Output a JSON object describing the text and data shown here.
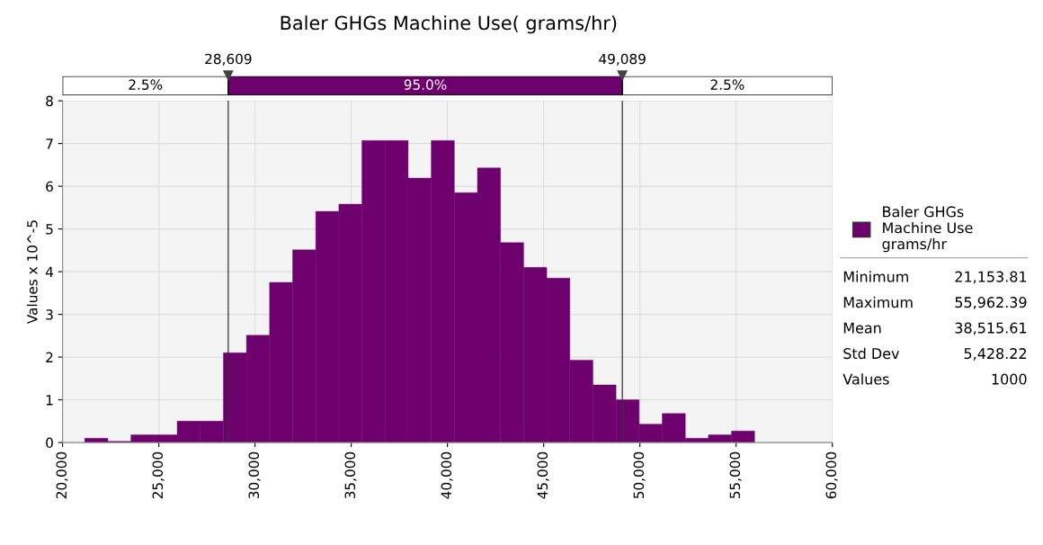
{
  "chart_data": {
    "type": "histogram",
    "title": "Baler GHGs Machine Use( grams/hr)",
    "ylabel": "Values x 10^-5",
    "bins": [
      21154,
      22354,
      23555,
      24755,
      25955,
      27155,
      28356,
      29556,
      30756,
      31957,
      33157,
      34357,
      35558,
      36758,
      37958,
      39158,
      40359,
      41559,
      42759,
      43960,
      45160,
      46360,
      47560,
      48761,
      49961,
      51161,
      52362,
      53562,
      54762,
      55962
    ],
    "series": [
      {
        "name": "Baler GHGs\nMachine Use\ngrams/hr",
        "color": "#6e006e",
        "values": [
          0.1,
          0.03,
          0.18,
          0.18,
          0.5,
          0.5,
          2.1,
          2.51,
          3.75,
          4.51,
          5.41,
          5.58,
          7.07,
          7.07,
          6.19,
          7.07,
          5.85,
          6.43,
          4.68,
          4.1,
          3.85,
          1.93,
          1.35,
          1.0,
          0.43,
          0.68,
          0.1,
          0.18,
          0.27
        ]
      }
    ],
    "xlim": [
      20000,
      60000
    ],
    "xticks": [
      {
        "value": 20000,
        "label": "20,000"
      },
      {
        "value": 25000,
        "label": "25,000"
      },
      {
        "value": 30000,
        "label": "30,000"
      },
      {
        "value": 35000,
        "label": "35,000"
      },
      {
        "value": 40000,
        "label": "40,000"
      },
      {
        "value": 45000,
        "label": "45,000"
      },
      {
        "value": 50000,
        "label": "50,000"
      },
      {
        "value": 55000,
        "label": "55,000"
      },
      {
        "value": 60000,
        "label": "60,000"
      }
    ],
    "ylim": [
      0,
      8
    ],
    "yticks": [
      0,
      1,
      2,
      3,
      4,
      5,
      6,
      7,
      8
    ],
    "grid": true,
    "legend": "right",
    "ref_lines": [
      {
        "axis": "x",
        "value": 28609,
        "label": "28,609"
      },
      {
        "axis": "x",
        "value": 49089,
        "label": "49,089"
      }
    ],
    "annotations": [
      "2.5%",
      "95.0%",
      "2.5%",
      "Minimum",
      "21,153.81",
      "Maximum",
      "55,962.39",
      "Mean",
      "38,515.61",
      "Std Dev",
      "5,428.22",
      "Values",
      "1000"
    ]
  }
}
